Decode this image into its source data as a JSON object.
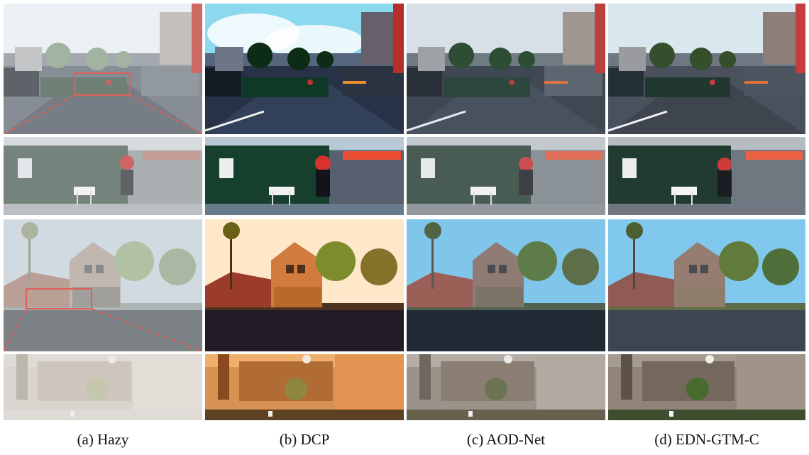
{
  "figure": {
    "captions": [
      "(a) Hazy",
      "(b) DCP",
      "(c) AOD-Net",
      "(d) EDN-GTM-C"
    ]
  },
  "methods": [
    {
      "name": "hazy",
      "sky": "#e7edf2",
      "ground": "#6c747c",
      "road": "#5f6771",
      "building": "#b8b9bb",
      "tree": "#8ea48d",
      "fence": "#516358",
      "accent": "#b94746",
      "house": "#c3b3a5",
      "haze": 0.38
    },
    {
      "name": "dcp",
      "sky": "#8bd8ef",
      "ground": "#232d42",
      "road": "#2f3e57",
      "building": "#6d7586",
      "tree": "#0d2c16",
      "fence": "#0f3826",
      "accent": "#c12f2f",
      "house": "#c27a43",
      "haze": 0.0
    },
    {
      "name": "aod-net",
      "sky": "#d7e0e6",
      "ground": "#3d4650",
      "road": "#444f5c",
      "building": "#9ea2a7",
      "tree": "#2e4d35",
      "fence": "#2d473d",
      "accent": "#b63e3e",
      "house": "#b49a88",
      "haze": 0.16
    },
    {
      "name": "edn-gtm-c",
      "sky": "#d9e7ee",
      "ground": "#4e5561",
      "road": "#3f4650",
      "building": "#9a9b9e",
      "tree": "#354f2c",
      "fence": "#20382d",
      "accent": "#c43e3e",
      "house": "#8d7563",
      "haze": 0.06
    }
  ]
}
